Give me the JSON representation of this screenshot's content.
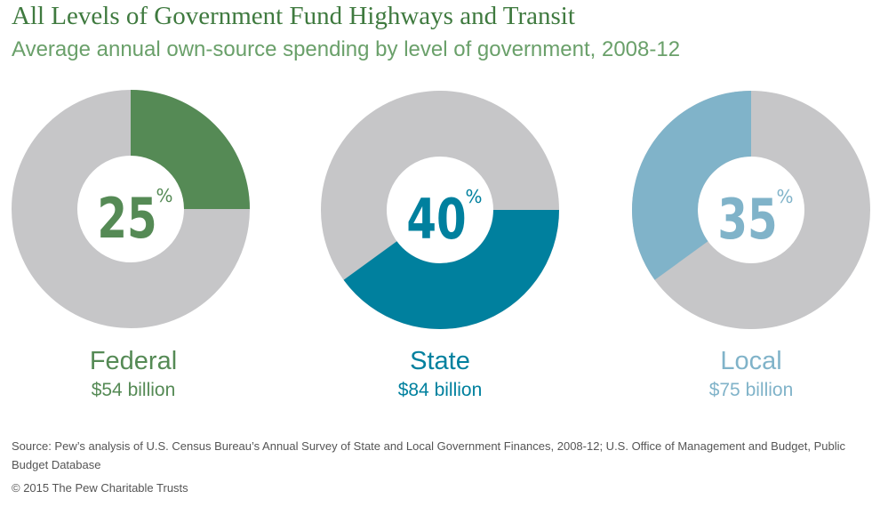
{
  "title": "All Levels of Government Fund Highways and Transit",
  "subtitle": "Average annual own-source spending by level of government, 2008-12",
  "chart_data": {
    "type": "pie",
    "charts": [
      {
        "name": "Federal",
        "percent": 25,
        "amount": "$54 billion",
        "color": "#558a55",
        "start": "top",
        "direction": "clockwise"
      },
      {
        "name": "State",
        "percent": 40,
        "amount": "$84 billion",
        "color": "#00809e",
        "start": "right",
        "direction": "clockwise"
      },
      {
        "name": "Local",
        "percent": 35,
        "amount": "$75 billion",
        "color": "#80b3c9",
        "start": "top",
        "direction": "counterclockwise"
      }
    ],
    "remainder_color": "#c6c6c8",
    "percent_symbol": "%"
  },
  "source": "Source: Pew’s analysis of U.S. Census Bureau’s Annual Survey of State and Local Government Finances, 2008-12; U.S. Office of Management and Budget, Public Budget Database",
  "copyright": "© 2015 The Pew Charitable Trusts"
}
